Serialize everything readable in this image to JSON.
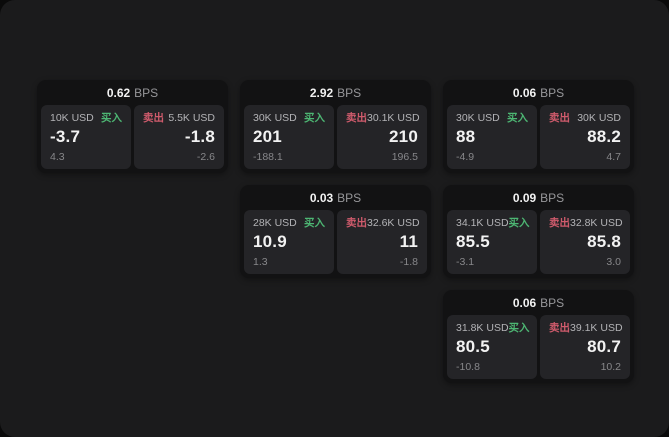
{
  "theme": {
    "page_bg": "#1b1b1c",
    "card_bg": "#121213",
    "panel_bg": "#242427",
    "text_primary": "#f2f2f2",
    "text_label": "#b3b3b6",
    "text_dim": "#87878a",
    "text_secondary": "#97979a",
    "buy_color": "#4db673",
    "sell_color": "#cf5b6c"
  },
  "labels": {
    "bps_unit": "BPS",
    "buy": "买入",
    "sell": "卖出"
  },
  "cards": [
    {
      "row": 1,
      "col": 1,
      "bps": "0.62",
      "buy": {
        "size": "10K USD",
        "value": "-3.7",
        "sub": "4.3"
      },
      "sell": {
        "size": "5.5K USD",
        "value": "-1.8",
        "sub": "-2.6"
      }
    },
    {
      "row": 1,
      "col": 2,
      "bps": "2.92",
      "buy": {
        "size": "30K USD",
        "value": "201",
        "sub": "-188.1"
      },
      "sell": {
        "size": "30.1K USD",
        "value": "210",
        "sub": "196.5"
      }
    },
    {
      "row": 1,
      "col": 3,
      "bps": "0.06",
      "buy": {
        "size": "30K USD",
        "value": "88",
        "sub": "-4.9"
      },
      "sell": {
        "size": "30K USD",
        "value": "88.2",
        "sub": "4.7"
      }
    },
    {
      "row": 2,
      "col": 2,
      "bps": "0.03",
      "buy": {
        "size": "28K USD",
        "value": "10.9",
        "sub": "1.3"
      },
      "sell": {
        "size": "32.6K USD",
        "value": "11",
        "sub": "-1.8"
      }
    },
    {
      "row": 2,
      "col": 3,
      "bps": "0.09",
      "buy": {
        "size": "34.1K USD",
        "value": "85.5",
        "sub": "-3.1"
      },
      "sell": {
        "size": "32.8K USD",
        "value": "85.8",
        "sub": "3.0"
      }
    },
    {
      "row": 3,
      "col": 3,
      "bps": "0.06",
      "buy": {
        "size": "31.8K USD",
        "value": "80.5",
        "sub": "-10.8"
      },
      "sell": {
        "size": "39.1K USD",
        "value": "80.7",
        "sub": "10.2"
      }
    }
  ]
}
